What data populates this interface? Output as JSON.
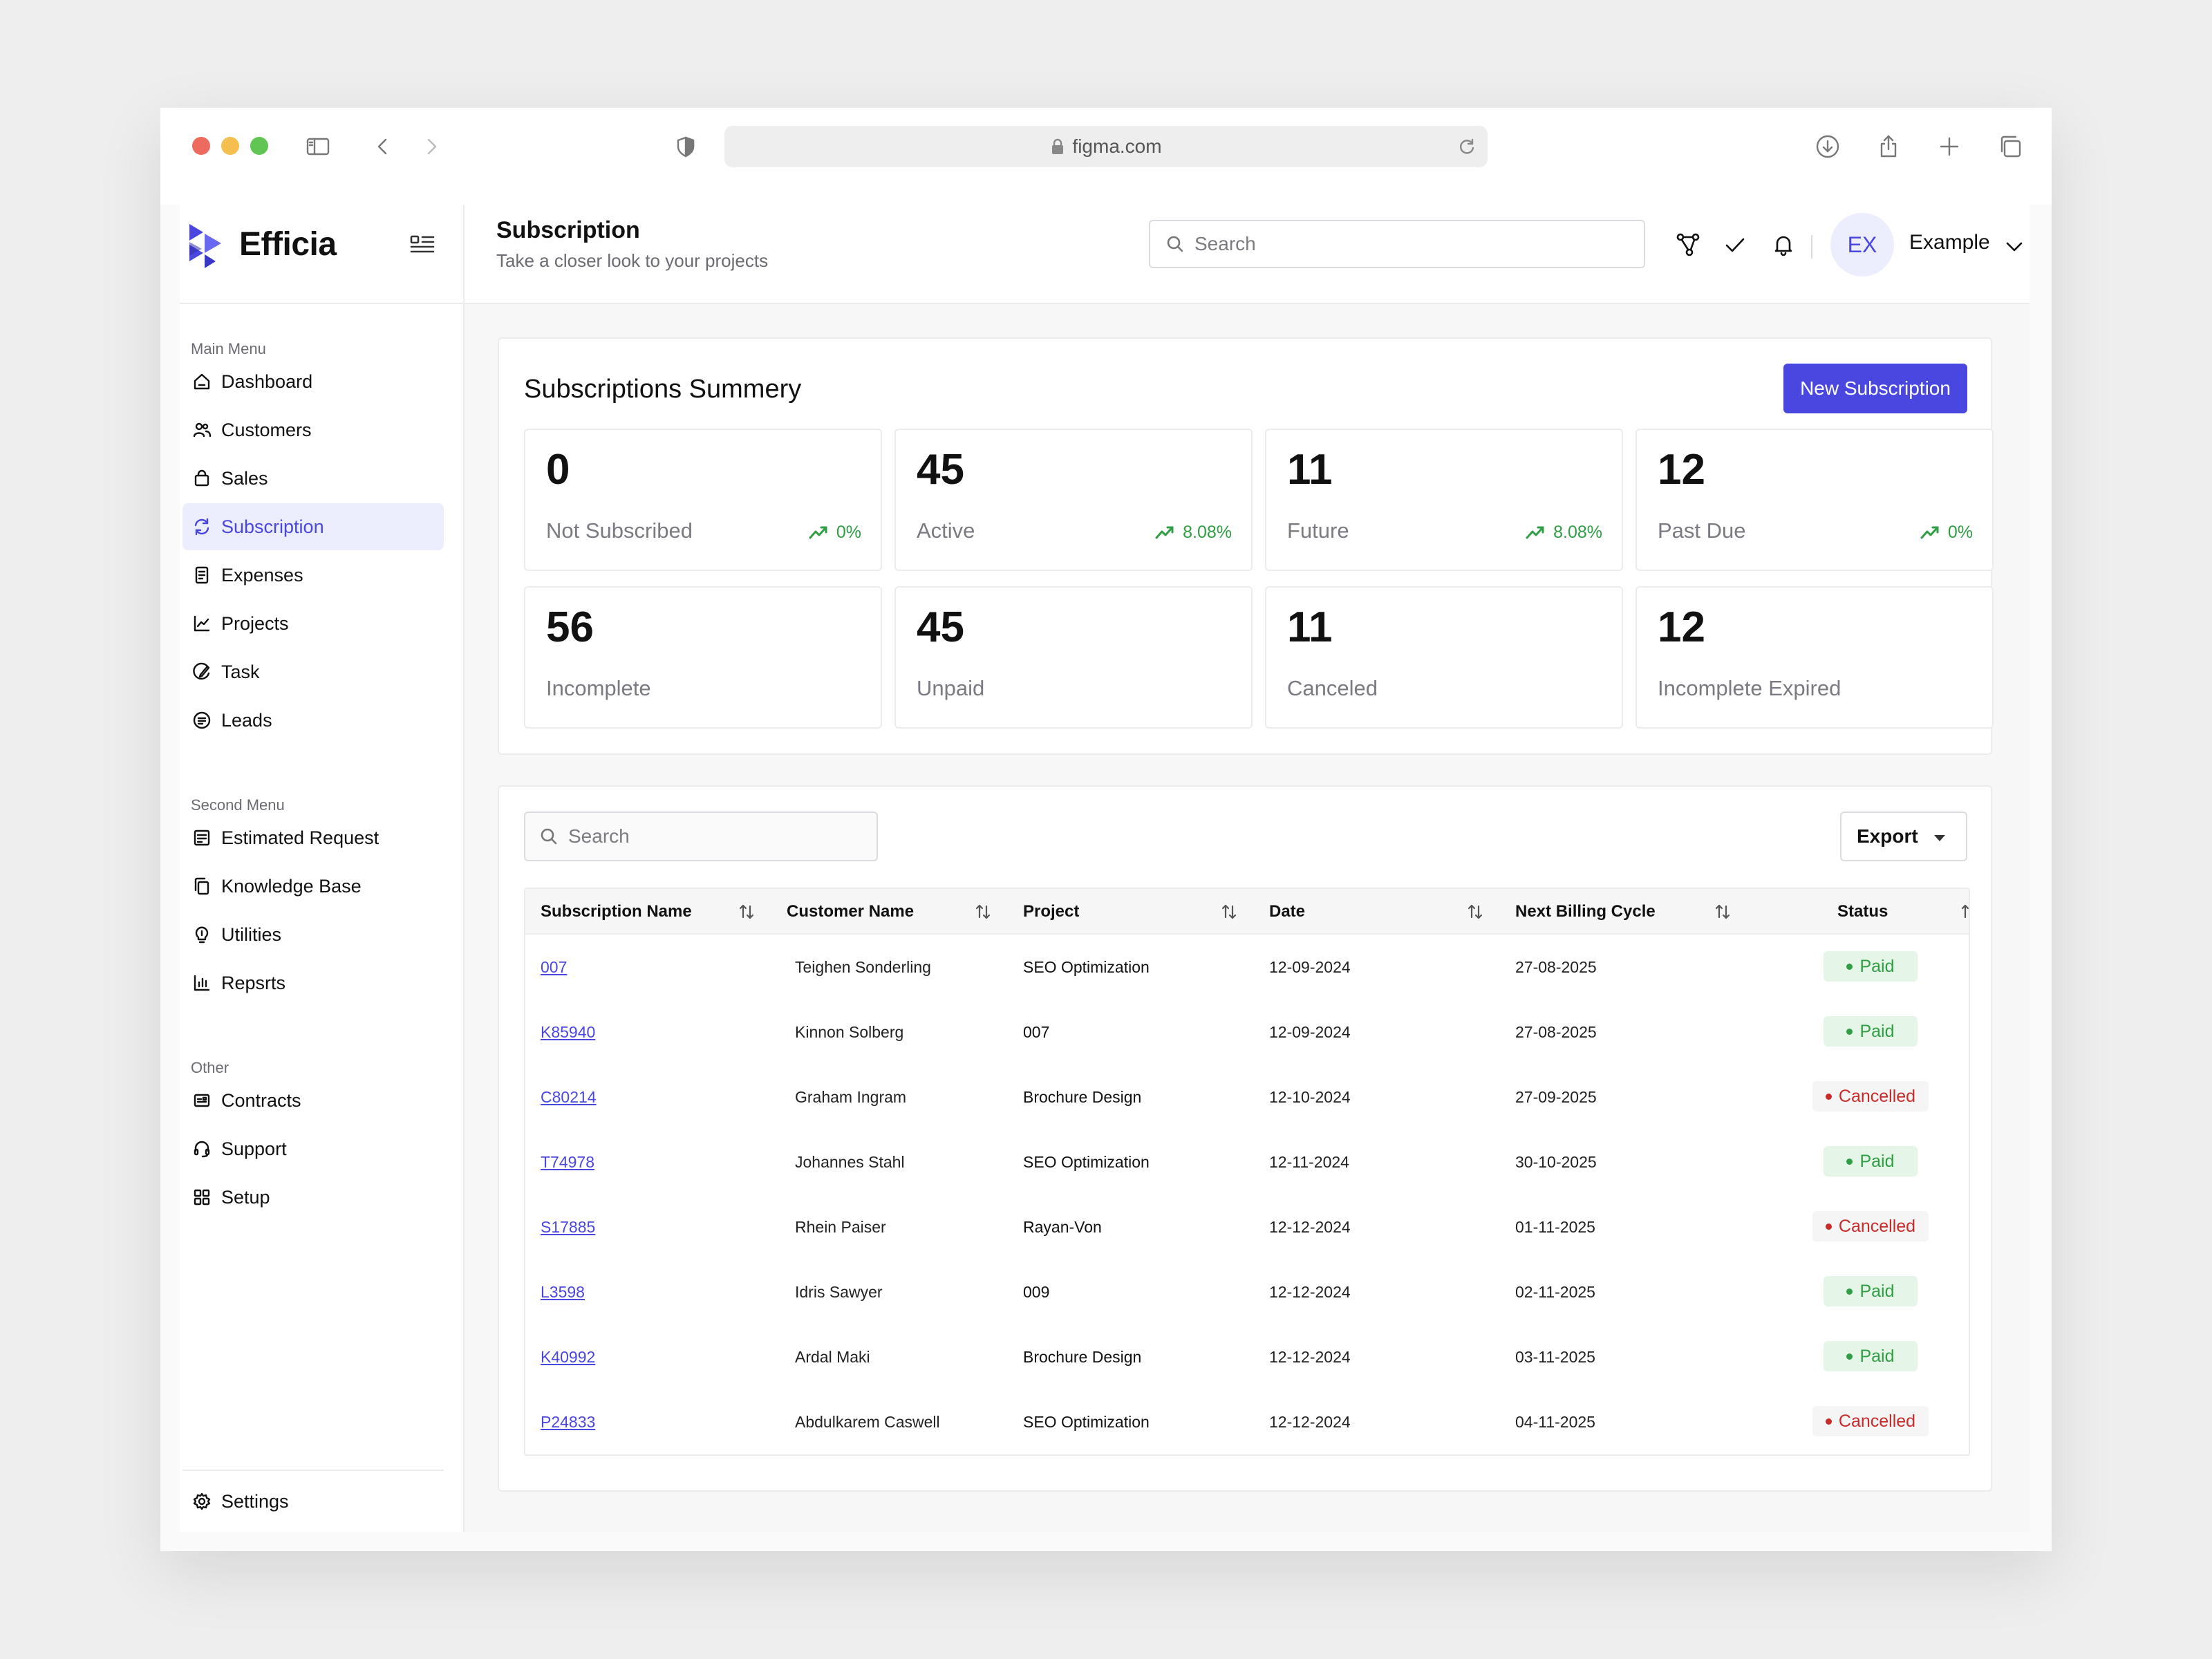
{
  "browser": {
    "url": "figma.com"
  },
  "brand": {
    "name": "Efficia",
    "color": "#4a47e0"
  },
  "sidebar": {
    "sections": [
      {
        "title": "Main Menu",
        "items": [
          {
            "label": "Dashboard",
            "icon": "home-icon"
          },
          {
            "label": "Customers",
            "icon": "users-icon"
          },
          {
            "label": "Sales",
            "icon": "bag-icon"
          },
          {
            "label": "Subscription",
            "icon": "refresh-icon",
            "active": true
          },
          {
            "label": "Expenses",
            "icon": "receipt-icon"
          },
          {
            "label": "Projects",
            "icon": "chart-icon"
          },
          {
            "label": "Task",
            "icon": "pen-icon"
          },
          {
            "label": "Leads",
            "icon": "list-circle-icon"
          }
        ]
      },
      {
        "title": "Second Menu",
        "items": [
          {
            "label": "Estimated Request",
            "icon": "estimate-icon"
          },
          {
            "label": "Knowledge Base",
            "icon": "copy-icon"
          },
          {
            "label": "Utilities",
            "icon": "bulb-icon"
          },
          {
            "label": "Repsrts",
            "icon": "bar-chart-icon"
          }
        ]
      },
      {
        "title": "Other",
        "items": [
          {
            "label": "Contracts",
            "icon": "contract-icon"
          },
          {
            "label": "Support",
            "icon": "headset-icon"
          },
          {
            "label": "Setup",
            "icon": "grid-icon"
          }
        ]
      }
    ],
    "settings_label": "Settings"
  },
  "header": {
    "title": "Subscription",
    "subtitle": "Take a closer look to your projects",
    "search_placeholder": "Search",
    "user": {
      "initials": "EX",
      "name": "Example"
    }
  },
  "summary": {
    "title": "Subscriptions Summery",
    "new_button": "New Subscription",
    "stats": [
      {
        "value": "0",
        "label": "Not Subscribed",
        "trend": "0%"
      },
      {
        "value": "45",
        "label": "Active",
        "trend": "8.08%"
      },
      {
        "value": "11",
        "label": "Future",
        "trend": "8.08%"
      },
      {
        "value": "12",
        "label": "Past Due",
        "trend": "0%"
      },
      {
        "value": "56",
        "label": "Incomplete"
      },
      {
        "value": "45",
        "label": "Unpaid"
      },
      {
        "value": "11",
        "label": "Canceled"
      },
      {
        "value": "12",
        "label": "Incomplete Expired"
      }
    ]
  },
  "table": {
    "search_placeholder": "Search",
    "export_label": "Export",
    "columns": [
      "Subscription Name",
      "Customer Name",
      "Project",
      "Date",
      "Next Billing Cycle",
      "Status"
    ],
    "rows": [
      {
        "id": "007",
        "customer": "Teighen Sonderling",
        "project": "SEO Optimization",
        "date": "12-09-2024",
        "next": "27-08-2025",
        "status": "Paid"
      },
      {
        "id": "K85940",
        "customer": "Kinnon Solberg",
        "project": "007",
        "date": "12-09-2024",
        "next": "27-08-2025",
        "status": "Paid"
      },
      {
        "id": "C80214",
        "customer": "Graham Ingram",
        "project": "Brochure Design",
        "date": "12-10-2024",
        "next": "27-09-2025",
        "status": "Cancelled"
      },
      {
        "id": "T74978",
        "customer": "Johannes Stahl",
        "project": "SEO Optimization",
        "date": "12-11-2024",
        "next": "30-10-2025",
        "status": "Paid"
      },
      {
        "id": "S17885",
        "customer": "Rhein Paiser",
        "project": "Rayan-Von",
        "date": "12-12-2024",
        "next": "01-11-2025",
        "status": "Cancelled"
      },
      {
        "id": "L3598",
        "customer": "Idris Sawyer",
        "project": "009",
        "date": "12-12-2024",
        "next": "02-11-2025",
        "status": "Paid"
      },
      {
        "id": "K40992",
        "customer": "Ardal Maki",
        "project": "Brochure Design",
        "date": "12-12-2024",
        "next": "03-11-2025",
        "status": "Paid"
      },
      {
        "id": "P24833",
        "customer": "Abdulkarem Caswell",
        "project": "SEO Optimization",
        "date": "12-12-2024",
        "next": "04-11-2025",
        "status": "Cancelled"
      }
    ]
  }
}
